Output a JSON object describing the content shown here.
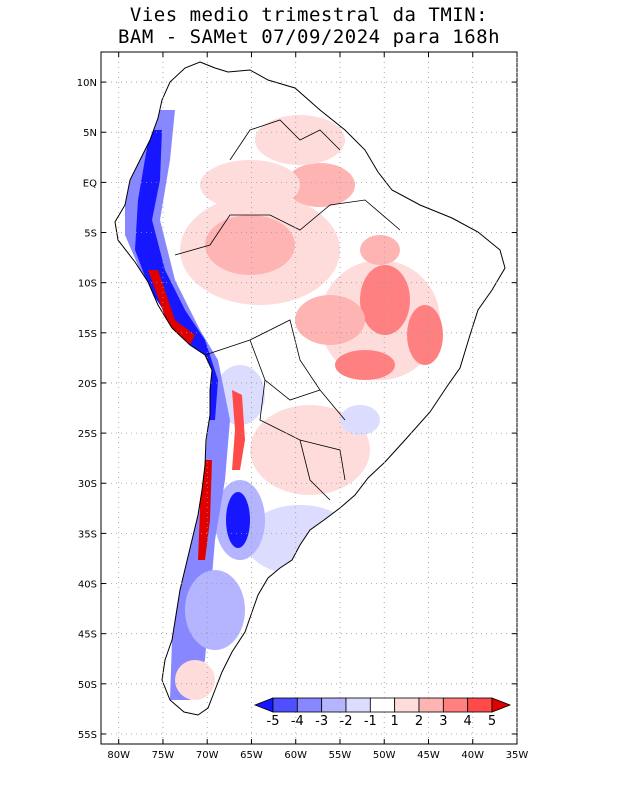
{
  "title": {
    "line1": "Vies medio trimestral da TMIN:",
    "line2": "BAM - SAMet 07/09/2024  para 168h"
  },
  "map": {
    "region": "South America",
    "lon_range": [
      -82,
      -35
    ],
    "lat_range": [
      -56,
      13
    ],
    "grid": true,
    "lat_labels": [
      "10N",
      "5N",
      "EQ",
      "5S",
      "10S",
      "15S",
      "20S",
      "25S",
      "30S",
      "35S",
      "40S",
      "45S",
      "50S",
      "55S"
    ],
    "lon_labels": [
      "80W",
      "75W",
      "70W",
      "65W",
      "60W",
      "55W",
      "50W",
      "45W",
      "40W",
      "35W"
    ],
    "colorbar": {
      "labels": [
        "-5",
        "-4",
        "-3",
        "-2",
        "-1",
        "1",
        "2",
        "3",
        "4",
        "5"
      ],
      "colors": [
        "#1616ff",
        "#4f4fff",
        "#8787ff",
        "#b4b4ff",
        "#dcdcff",
        "#ffffff",
        "#ffdcdc",
        "#ffb4b4",
        "#ff8080",
        "#ff4a4a",
        "#e00000"
      ],
      "position": "bottom-right"
    }
  }
}
